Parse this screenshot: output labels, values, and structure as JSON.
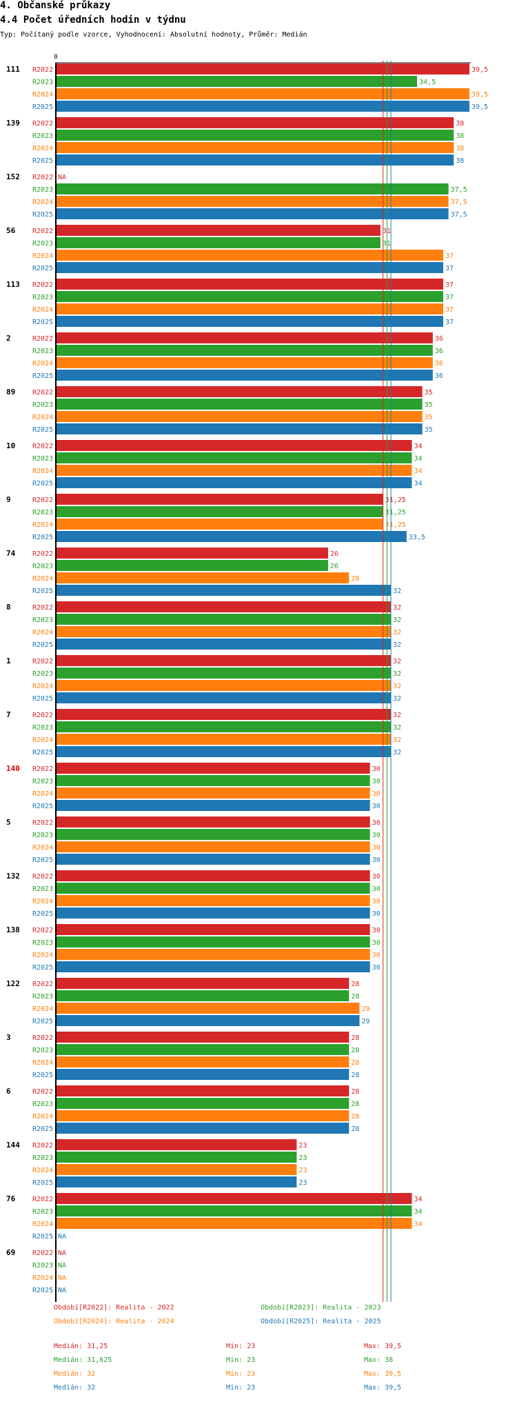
{
  "header": {
    "title": "4. Občanské průkazy",
    "subtitle": "4.4 Počet úředních hodin v týdnu",
    "type_line": "Typ: Počítaný podle vzorce, Vyhodnocení: Absolutní hodnoty, Průměr: Medián"
  },
  "colors": {
    "R2022": "#d62728",
    "R2023": "#2ca02c",
    "R2024": "#ff7f0e",
    "R2025": "#1f77b4",
    "highlight": "#e00000"
  },
  "chart_data": {
    "type": "bar",
    "orientation": "horizontal",
    "axis_zero_label": "0",
    "xlim": [
      0,
      39.5
    ],
    "median_lines": [
      31.25,
      31.625,
      32
    ],
    "series_names": [
      "R2022",
      "R2023",
      "R2024",
      "R2025"
    ],
    "groups": [
      {
        "id": "111",
        "highlight": false,
        "bars": [
          {
            "series": "R2022",
            "value": 39.5,
            "label": "39,5"
          },
          {
            "series": "R2023",
            "value": 34.5,
            "label": "34,5"
          },
          {
            "series": "R2024",
            "value": 39.5,
            "label": "39,5"
          },
          {
            "series": "R2025",
            "value": 39.5,
            "label": "39,5"
          }
        ]
      },
      {
        "id": "139",
        "highlight": false,
        "bars": [
          {
            "series": "R2022",
            "value": 38,
            "label": "38"
          },
          {
            "series": "R2023",
            "value": 38,
            "label": "38"
          },
          {
            "series": "R2024",
            "value": 38,
            "label": "38"
          },
          {
            "series": "R2025",
            "value": 38,
            "label": "38"
          }
        ]
      },
      {
        "id": "152",
        "highlight": false,
        "bars": [
          {
            "series": "R2022",
            "value": null,
            "label": "NA"
          },
          {
            "series": "R2023",
            "value": 37.5,
            "label": "37,5"
          },
          {
            "series": "R2024",
            "value": 37.5,
            "label": "37,5"
          },
          {
            "series": "R2025",
            "value": 37.5,
            "label": "37,5"
          }
        ]
      },
      {
        "id": "56",
        "highlight": false,
        "bars": [
          {
            "series": "R2022",
            "value": 31,
            "label": "31"
          },
          {
            "series": "R2023",
            "value": 31,
            "label": "31"
          },
          {
            "series": "R2024",
            "value": 37,
            "label": "37"
          },
          {
            "series": "R2025",
            "value": 37,
            "label": "37"
          }
        ]
      },
      {
        "id": "113",
        "highlight": false,
        "bars": [
          {
            "series": "R2022",
            "value": 37,
            "label": "37"
          },
          {
            "series": "R2023",
            "value": 37,
            "label": "37"
          },
          {
            "series": "R2024",
            "value": 37,
            "label": "37"
          },
          {
            "series": "R2025",
            "value": 37,
            "label": "37"
          }
        ]
      },
      {
        "id": "2",
        "highlight": false,
        "bars": [
          {
            "series": "R2022",
            "value": 36,
            "label": "36"
          },
          {
            "series": "R2023",
            "value": 36,
            "label": "36"
          },
          {
            "series": "R2024",
            "value": 36,
            "label": "36"
          },
          {
            "series": "R2025",
            "value": 36,
            "label": "36"
          }
        ]
      },
      {
        "id": "89",
        "highlight": false,
        "bars": [
          {
            "series": "R2022",
            "value": 35,
            "label": "35"
          },
          {
            "series": "R2023",
            "value": 35,
            "label": "35"
          },
          {
            "series": "R2024",
            "value": 35,
            "label": "35"
          },
          {
            "series": "R2025",
            "value": 35,
            "label": "35"
          }
        ]
      },
      {
        "id": "10",
        "highlight": false,
        "bars": [
          {
            "series": "R2022",
            "value": 34,
            "label": "34"
          },
          {
            "series": "R2023",
            "value": 34,
            "label": "34"
          },
          {
            "series": "R2024",
            "value": 34,
            "label": "34"
          },
          {
            "series": "R2025",
            "value": 34,
            "label": "34"
          }
        ]
      },
      {
        "id": "9",
        "highlight": false,
        "bars": [
          {
            "series": "R2022",
            "value": 31.25,
            "label": "31,25"
          },
          {
            "series": "R2023",
            "value": 31.25,
            "label": "31,25"
          },
          {
            "series": "R2024",
            "value": 31.25,
            "label": "31,25"
          },
          {
            "series": "R2025",
            "value": 33.5,
            "label": "33,5"
          }
        ]
      },
      {
        "id": "74",
        "highlight": false,
        "bars": [
          {
            "series": "R2022",
            "value": 26,
            "label": "26"
          },
          {
            "series": "R2023",
            "value": 26,
            "label": "26"
          },
          {
            "series": "R2024",
            "value": 28,
            "label": "28"
          },
          {
            "series": "R2025",
            "value": 32,
            "label": "32"
          }
        ]
      },
      {
        "id": "8",
        "highlight": false,
        "bars": [
          {
            "series": "R2022",
            "value": 32,
            "label": "32"
          },
          {
            "series": "R2023",
            "value": 32,
            "label": "32"
          },
          {
            "series": "R2024",
            "value": 32,
            "label": "32"
          },
          {
            "series": "R2025",
            "value": 32,
            "label": "32"
          }
        ]
      },
      {
        "id": "1",
        "highlight": false,
        "bars": [
          {
            "series": "R2022",
            "value": 32,
            "label": "32"
          },
          {
            "series": "R2023",
            "value": 32,
            "label": "32"
          },
          {
            "series": "R2024",
            "value": 32,
            "label": "32"
          },
          {
            "series": "R2025",
            "value": 32,
            "label": "32"
          }
        ]
      },
      {
        "id": "7",
        "highlight": false,
        "bars": [
          {
            "series": "R2022",
            "value": 32,
            "label": "32"
          },
          {
            "series": "R2023",
            "value": 32,
            "label": "32"
          },
          {
            "series": "R2024",
            "value": 32,
            "label": "32"
          },
          {
            "series": "R2025",
            "value": 32,
            "label": "32"
          }
        ]
      },
      {
        "id": "140",
        "highlight": true,
        "bars": [
          {
            "series": "R2022",
            "value": 30,
            "label": "30"
          },
          {
            "series": "R2023",
            "value": 30,
            "label": "30"
          },
          {
            "series": "R2024",
            "value": 30,
            "label": "30"
          },
          {
            "series": "R2025",
            "value": 30,
            "label": "30"
          }
        ]
      },
      {
        "id": "5",
        "highlight": false,
        "bars": [
          {
            "series": "R2022",
            "value": 30,
            "label": "30"
          },
          {
            "series": "R2023",
            "value": 30,
            "label": "30"
          },
          {
            "series": "R2024",
            "value": 30,
            "label": "30"
          },
          {
            "series": "R2025",
            "value": 30,
            "label": "30"
          }
        ]
      },
      {
        "id": "132",
        "highlight": false,
        "bars": [
          {
            "series": "R2022",
            "value": 30,
            "label": "30"
          },
          {
            "series": "R2023",
            "value": 30,
            "label": "30"
          },
          {
            "series": "R2024",
            "value": 30,
            "label": "30"
          },
          {
            "series": "R2025",
            "value": 30,
            "label": "30"
          }
        ]
      },
      {
        "id": "138",
        "highlight": false,
        "bars": [
          {
            "series": "R2022",
            "value": 30,
            "label": "30"
          },
          {
            "series": "R2023",
            "value": 30,
            "label": "30"
          },
          {
            "series": "R2024",
            "value": 30,
            "label": "30"
          },
          {
            "series": "R2025",
            "value": 30,
            "label": "30"
          }
        ]
      },
      {
        "id": "122",
        "highlight": false,
        "bars": [
          {
            "series": "R2022",
            "value": 28,
            "label": "28"
          },
          {
            "series": "R2023",
            "value": 28,
            "label": "28"
          },
          {
            "series": "R2024",
            "value": 29,
            "label": "29"
          },
          {
            "series": "R2025",
            "value": 29,
            "label": "29"
          }
        ]
      },
      {
        "id": "3",
        "highlight": false,
        "bars": [
          {
            "series": "R2022",
            "value": 28,
            "label": "28"
          },
          {
            "series": "R2023",
            "value": 28,
            "label": "28"
          },
          {
            "series": "R2024",
            "value": 28,
            "label": "28"
          },
          {
            "series": "R2025",
            "value": 28,
            "label": "28"
          }
        ]
      },
      {
        "id": "6",
        "highlight": false,
        "bars": [
          {
            "series": "R2022",
            "value": 28,
            "label": "28"
          },
          {
            "series": "R2023",
            "value": 28,
            "label": "28"
          },
          {
            "series": "R2024",
            "value": 28,
            "label": "28"
          },
          {
            "series": "R2025",
            "value": 28,
            "label": "28"
          }
        ]
      },
      {
        "id": "144",
        "highlight": false,
        "bars": [
          {
            "series": "R2022",
            "value": 23,
            "label": "23"
          },
          {
            "series": "R2023",
            "value": 23,
            "label": "23"
          },
          {
            "series": "R2024",
            "value": 23,
            "label": "23"
          },
          {
            "series": "R2025",
            "value": 23,
            "label": "23"
          }
        ]
      },
      {
        "id": "76",
        "highlight": false,
        "bars": [
          {
            "series": "R2022",
            "value": 34,
            "label": "34"
          },
          {
            "series": "R2023",
            "value": 34,
            "label": "34"
          },
          {
            "series": "R2024",
            "value": 34,
            "label": "34"
          },
          {
            "series": "R2025",
            "value": null,
            "label": "NA"
          }
        ]
      },
      {
        "id": "69",
        "highlight": false,
        "bars": [
          {
            "series": "R2022",
            "value": null,
            "label": "NA"
          },
          {
            "series": "R2023",
            "value": null,
            "label": "NA"
          },
          {
            "series": "R2024",
            "value": null,
            "label": "NA"
          },
          {
            "series": "R2025",
            "value": null,
            "label": "NA"
          }
        ]
      }
    ],
    "legend": [
      {
        "series": "R2022",
        "text": "Období[R2022]: Realita - 2022"
      },
      {
        "series": "R2023",
        "text": "Období[R2023]: Realita - 2023"
      },
      {
        "series": "R2024",
        "text": "Období[R2024]: Realita - 2024"
      },
      {
        "series": "R2025",
        "text": "Období[R2025]: Realita - 2025"
      }
    ],
    "stats": [
      {
        "series": "R2022",
        "median": "Medián: 31,25",
        "min": "Min: 23",
        "max": "Max: 39,5"
      },
      {
        "series": "R2023",
        "median": "Medián: 31,625",
        "min": "Min: 23",
        "max": "Max: 38"
      },
      {
        "series": "R2024",
        "median": "Medián: 32",
        "min": "Min: 23",
        "max": "Max: 39,5"
      },
      {
        "series": "R2025",
        "median": "Medián: 32",
        "min": "Min: 23",
        "max": "Max: 39,5"
      }
    ]
  }
}
